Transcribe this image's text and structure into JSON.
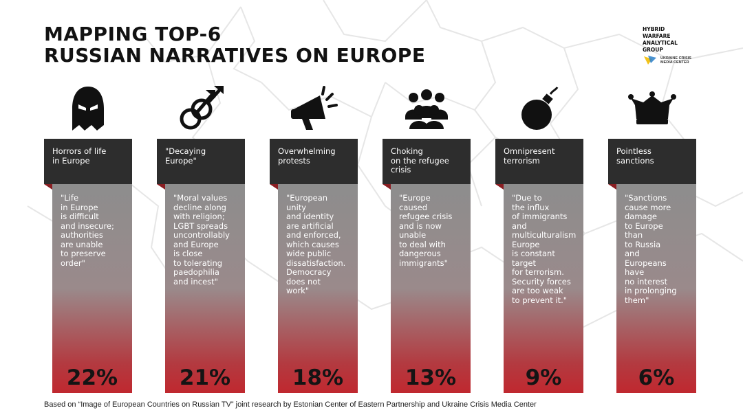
{
  "title": {
    "line1": "MAPPING TOP-6",
    "line2": "RUSSIAN NARRATIVES ON EUROPE"
  },
  "logo": {
    "lines": [
      "HYBRID",
      "WARFARE",
      "ANALYTICAL",
      "GROUP"
    ],
    "sub_lines": [
      "UKRAINE CRISIS",
      "MEDIA CENTER"
    ]
  },
  "narratives": [
    {
      "icon": "ghost-mask-icon",
      "heading": [
        "Horrors of life",
        "in Europe"
      ],
      "quote": [
        "\"Life",
        "in Europe",
        "is difficult",
        "and insecure;",
        "authorities",
        "are unable",
        "to preserve",
        "order\""
      ],
      "percent": "22%"
    },
    {
      "icon": "male-gender-symbols-icon",
      "heading": [
        "\"Decaying",
        "Europe\""
      ],
      "quote": [
        "\"Moral values",
        "decline along",
        "with religion;",
        "LGBT spreads",
        "uncontrollably",
        "and Europe",
        "is close",
        "to tolerating",
        "paedophilia",
        "and incest\""
      ],
      "percent": "21%"
    },
    {
      "icon": "megaphone-icon",
      "heading": [
        "Overwhelming",
        "protests"
      ],
      "quote": [
        "\"European",
        "unity",
        "and identity",
        "are artificial",
        "and enforced,",
        "which causes",
        "wide public",
        "dissatisfaction.",
        "Democracy",
        "does not",
        "work\""
      ],
      "percent": "18%"
    },
    {
      "icon": "crowd-icon",
      "heading": [
        "Choking",
        "on the refugee",
        "crisis"
      ],
      "quote": [
        "\"Europe",
        "caused",
        "refugee crisis",
        "and is now",
        "unable",
        "to deal with",
        "dangerous",
        "immigrants\""
      ],
      "percent": "13%"
    },
    {
      "icon": "bomb-icon",
      "heading": [
        "Omnipresent",
        "terrorism"
      ],
      "quote": [
        "\"Due to",
        "the influx",
        "of immigrants",
        "and",
        "multiculturalism",
        "Europe",
        "is constant",
        "target",
        "for terrorism.",
        "Security forces",
        "are too weak",
        "to prevent it.\""
      ],
      "percent": "9%"
    },
    {
      "icon": "jester-hat-icon",
      "heading": [
        "Pointless",
        "sanctions"
      ],
      "quote": [
        "\"Sanctions",
        "cause more",
        "damage",
        "to Europe",
        "than",
        "to Russia",
        "and",
        "Europeans",
        "have",
        "no interest",
        "in prolonging",
        "them\""
      ],
      "percent": "6%"
    }
  ],
  "footer": "Based on “Image of European Countries on Russian TV” joint research by Estonian Center of Eastern Partnership and Ukraine Crisis Media Center",
  "colors": {
    "header_bg": "#2d2d2d",
    "accent_red": "#c0282f",
    "body_gray": "#8d8d8d",
    "map_line": "#e4e4e4"
  }
}
